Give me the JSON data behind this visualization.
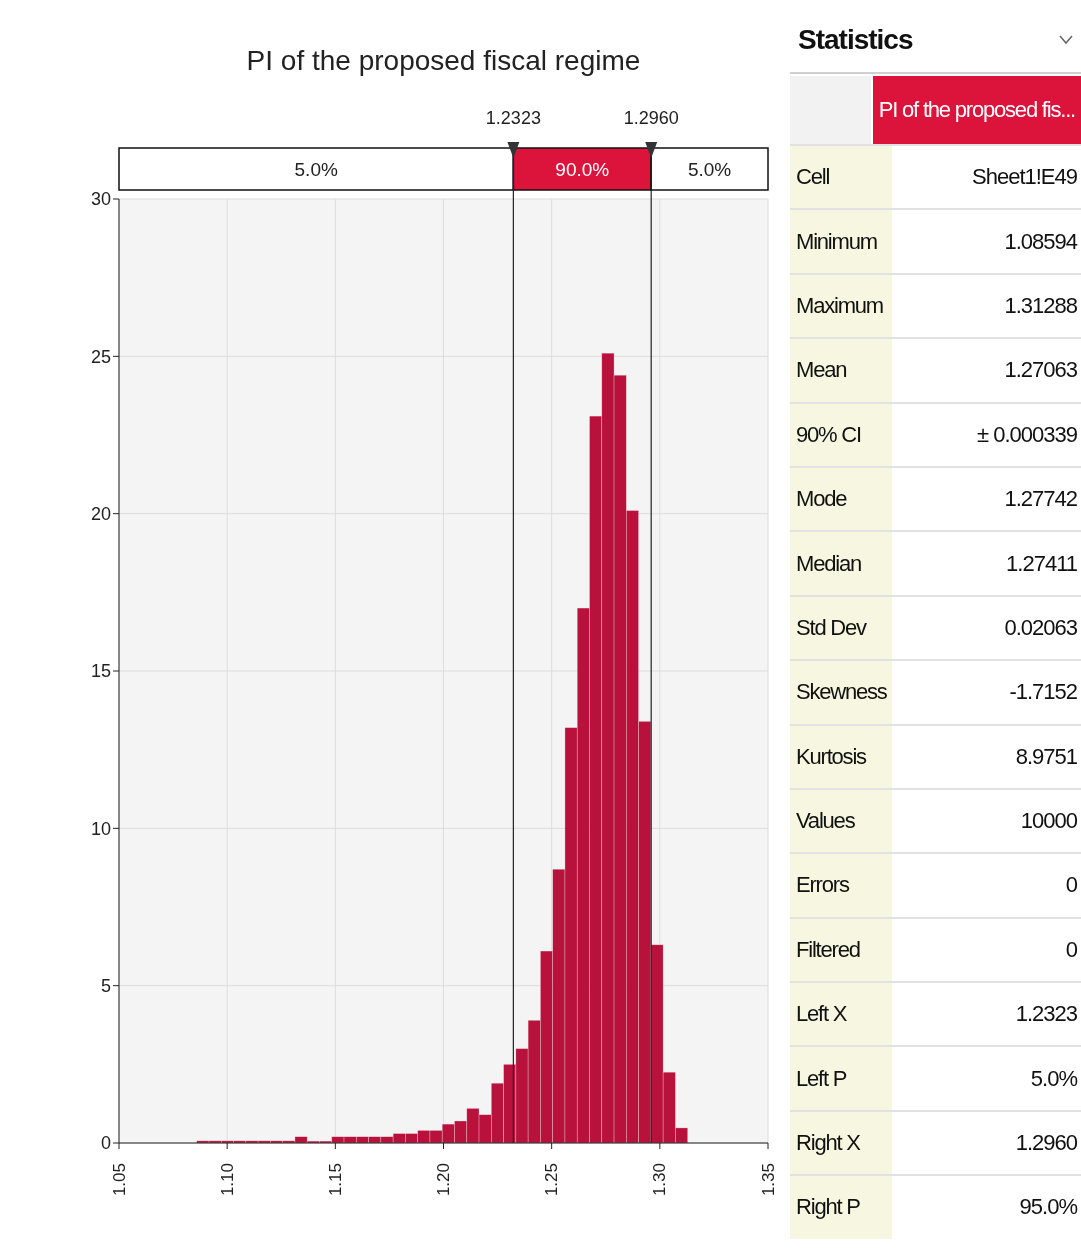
{
  "chart_data": [
    {
      "type": "histogram",
      "title": "PI of the proposed fiscal regime",
      "bins": [
        1.08594,
        1.09161,
        1.09729,
        1.10296,
        1.10863,
        1.11431,
        1.11998,
        1.12565,
        1.13133,
        1.137,
        1.14268,
        1.14835,
        1.15402,
        1.1597,
        1.16537,
        1.17104,
        1.17672,
        1.18239,
        1.18806,
        1.19374,
        1.19941,
        1.20508,
        1.21076,
        1.21643,
        1.2221,
        1.22778,
        1.23345,
        1.23912,
        1.2448,
        1.25047,
        1.25614,
        1.26182,
        1.26749,
        1.27316,
        1.27884,
        1.28451,
        1.29018,
        1.29586,
        1.30153,
        1.3072,
        1.31288
      ],
      "values": [
        0.07,
        0.07,
        0.07,
        0.07,
        0.07,
        0.07,
        0.07,
        0.07,
        0.2,
        0.06,
        0.06,
        0.2,
        0.2,
        0.2,
        0.2,
        0.2,
        0.3,
        0.3,
        0.4,
        0.4,
        0.6,
        0.7,
        1.1,
        0.9,
        1.9,
        2.5,
        3.0,
        3.9,
        6.1,
        8.7,
        13.2,
        17.0,
        23.1,
        25.1,
        24.4,
        20.1,
        13.4,
        6.3,
        2.25,
        0.48
      ],
      "color": "#b8123c",
      "xlim": [
        1.05,
        1.35
      ],
      "xticks": [
        {
          "value": 1.05,
          "label": "1.05"
        },
        {
          "value": 1.1,
          "label": "1.10"
        },
        {
          "value": 1.15,
          "label": "1.15"
        },
        {
          "value": 1.2,
          "label": "1.20"
        },
        {
          "value": 1.25,
          "label": "1.25"
        },
        {
          "value": 1.3,
          "label": "1.30"
        },
        {
          "value": 1.35,
          "label": "1.35"
        }
      ],
      "ylim": [
        0,
        30
      ],
      "yticks": [
        0,
        5,
        10,
        15,
        20,
        25,
        30
      ],
      "grid": true,
      "ref_lines": [
        {
          "axis": "x",
          "value": 1.2323,
          "label": "1.2323",
          "color": "#222222"
        },
        {
          "axis": "x",
          "value": 1.296,
          "label": "1.2960",
          "color": "#222222"
        }
      ],
      "annotations": [
        "5.0%",
        "90.0%",
        "5.0%"
      ]
    },
    {
      "type": "other",
      "title": "Statistics",
      "subtitle": "PI of the proposed fis...",
      "categories": [
        "Cell",
        "Minimum",
        "Maximum",
        "Mean",
        "90% CI",
        "Mode",
        "Median",
        "Std Dev",
        "Skewness",
        "Kurtosis",
        "Values",
        "Errors",
        "Filtered",
        "Left X",
        "Left P",
        "Right X",
        "Right P"
      ],
      "value_labels": [
        "Sheet1!E49",
        "1.08594",
        "1.31288",
        "1.27063",
        "± 0.000339",
        "1.27742",
        "1.27411",
        "0.02063",
        "-1.7152",
        "8.9751",
        "10000",
        "0",
        "0",
        "1.2323",
        "5.0%",
        "1.2960",
        "95.0%"
      ]
    }
  ]
}
